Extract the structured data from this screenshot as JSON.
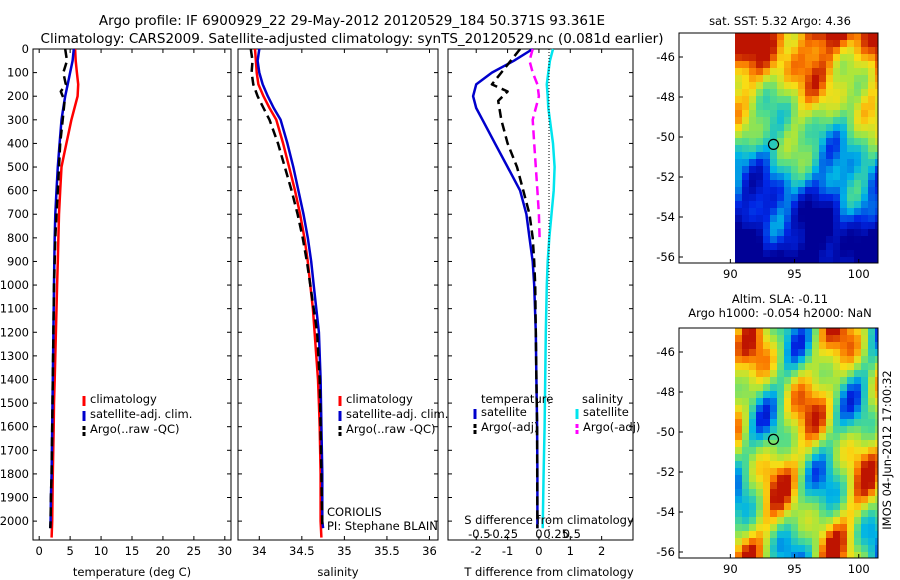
{
  "titles": {
    "line1": "Argo profile: IF 6900929_22 29-May-2012 20120529_184 50.371S 93.361E",
    "line2": "Climatology: CARS2009. Satellite-adjusted climatology: synTS_20120529.nc (0.081d earlier)"
  },
  "colors": {
    "climatology": "#ff0000",
    "satellite": "#0000cc",
    "argo": "#000000",
    "sal_satellite": "#00e5ee",
    "sal_argo": "#ff00ff"
  },
  "chart_data": [
    {
      "type": "line",
      "panel": "temperature",
      "xlabel": "temperature (deg C)",
      "ylabel": "",
      "xlim": [
        -1,
        31
      ],
      "ylim": [
        2080,
        0
      ],
      "xticks": [
        0,
        5,
        10,
        15,
        20,
        25,
        30
      ],
      "xticklabels": [
        "0",
        "5",
        "10",
        "15",
        "20",
        "25",
        "30"
      ],
      "yticks": [
        0,
        100,
        200,
        300,
        400,
        500,
        600,
        700,
        800,
        900,
        1000,
        1100,
        1200,
        1300,
        1400,
        1500,
        1600,
        1700,
        1800,
        1900,
        2000
      ],
      "yticklabels": [
        "0",
        "100",
        "200",
        "300",
        "400",
        "500",
        "600",
        "700",
        "800",
        "900",
        "1000",
        "1100",
        "1200",
        "1300",
        "1400",
        "1500",
        "1600",
        "1700",
        "1800",
        "1900",
        "2000"
      ],
      "legend": [
        "climatology",
        "satellite-adj. clim.",
        "Argo(..raw -QC)"
      ],
      "legend_position": "center-right",
      "series": [
        {
          "name": "climatology",
          "style": "solid",
          "color_key": "climatology",
          "x": [
            5.8,
            5.9,
            6.1,
            6.3,
            6.2,
            5.7,
            5.2,
            4.8,
            4.4,
            4.0,
            3.6,
            3.4,
            3.2,
            3.1,
            3.0,
            2.9,
            2.8,
            2.7,
            2.6,
            2.5,
            2.4,
            2.35,
            2.2,
            2.1,
            2.0
          ],
          "y": [
            0,
            50,
            100,
            150,
            200,
            250,
            300,
            350,
            400,
            450,
            500,
            600,
            700,
            800,
            900,
            1000,
            1100,
            1200,
            1300,
            1400,
            1500,
            1600,
            1800,
            2000,
            2070
          ]
        },
        {
          "name": "satellite-adj. clim.",
          "style": "solid",
          "color_key": "satellite",
          "x": [
            5.6,
            5.4,
            5.0,
            4.6,
            4.2,
            3.9,
            3.6,
            3.3,
            3.0,
            2.8,
            2.6,
            2.5,
            2.45,
            2.4,
            2.35,
            2.3,
            2.2,
            2.1,
            2.0,
            1.9,
            1.85,
            1.8
          ],
          "y": [
            0,
            50,
            100,
            150,
            200,
            250,
            300,
            400,
            500,
            600,
            700,
            800,
            900,
            1000,
            1100,
            1200,
            1400,
            1600,
            1800,
            1900,
            2000,
            2030
          ]
        },
        {
          "name": "Argo(..raw -QC)",
          "style": "dashed",
          "color_key": "argo",
          "x": [
            4.2,
            4.5,
            3.9,
            4.3,
            3.5,
            4.1,
            3.8,
            3.4,
            3.2,
            3.0,
            2.8,
            2.6,
            2.5,
            2.4,
            2.3,
            2.2,
            2.1,
            2.0,
            1.9,
            1.85,
            1.8
          ],
          "y": [
            0,
            50,
            100,
            150,
            180,
            220,
            300,
            400,
            500,
            600,
            700,
            800,
            900,
            1000,
            1200,
            1400,
            1600,
            1800,
            1900,
            2000,
            2030
          ]
        }
      ]
    },
    {
      "type": "line",
      "panel": "salinity",
      "xlabel": "salinity",
      "ylabel": "",
      "xlim": [
        33.75,
        36.1
      ],
      "ylim": [
        2080,
        0
      ],
      "xticks": [
        34,
        34.5,
        35,
        35.5,
        36
      ],
      "xticklabels": [
        "34",
        "34.5",
        "35",
        "35.5",
        "36"
      ],
      "legend": [
        "climatology",
        "satellite-adj. clim.",
        "Argo(..raw -QC)"
      ],
      "legend_position": "center-right",
      "annotation": [
        "CORIOLIS",
        "PI: Stephane BLAIN"
      ],
      "series": [
        {
          "name": "climatology",
          "style": "solid",
          "color_key": "climatology",
          "x": [
            33.95,
            33.96,
            33.97,
            33.99,
            34.05,
            34.12,
            34.2,
            34.28,
            34.35,
            34.42,
            34.48,
            34.53,
            34.57,
            34.6,
            34.63,
            34.65,
            34.67,
            34.69,
            34.7,
            34.71,
            34.72,
            34.72,
            34.73
          ],
          "y": [
            0,
            50,
            100,
            150,
            200,
            250,
            300,
            400,
            500,
            600,
            700,
            800,
            900,
            1000,
            1100,
            1200,
            1300,
            1400,
            1500,
            1600,
            1800,
            2000,
            2070
          ]
        },
        {
          "name": "satellite-adj. clim.",
          "style": "solid",
          "color_key": "satellite",
          "x": [
            34.0,
            33.98,
            34.0,
            34.04,
            34.1,
            34.17,
            34.25,
            34.33,
            34.4,
            34.46,
            34.52,
            34.57,
            34.61,
            34.64,
            34.67,
            34.7,
            34.72,
            34.73,
            34.74,
            34.74,
            34.75
          ],
          "y": [
            0,
            50,
            100,
            150,
            200,
            250,
            300,
            400,
            500,
            600,
            700,
            800,
            900,
            1000,
            1100,
            1200,
            1400,
            1600,
            1800,
            2000,
            2030
          ]
        },
        {
          "name": "Argo(..raw -QC)",
          "style": "dashed",
          "color_key": "argo",
          "x": [
            33.9,
            33.92,
            33.91,
            33.93,
            33.98,
            34.05,
            34.12,
            34.22,
            34.3,
            34.38,
            34.45,
            34.51,
            34.56,
            34.6,
            34.64,
            34.68,
            34.71,
            34.72,
            34.73,
            34.74
          ],
          "y": [
            0,
            50,
            100,
            150,
            200,
            250,
            300,
            400,
            500,
            600,
            700,
            800,
            900,
            1000,
            1100,
            1200,
            1400,
            1600,
            1800,
            2030
          ]
        }
      ]
    },
    {
      "type": "line",
      "panel": "difference",
      "xlabel": "T difference from climatology",
      "top_label": "S difference from climatology",
      "xlim": [
        -2.9,
        3.0
      ],
      "ylim": [
        2080,
        0
      ],
      "xticks": [
        -2,
        -1,
        0,
        1,
        2
      ],
      "xticklabels": [
        "-2",
        "-1",
        "0",
        "1",
        "2"
      ],
      "top_ticklabels": [
        "-0.5",
        "-0.25",
        "0",
        "0.25",
        "0.5"
      ],
      "legend_groups": [
        "temperature",
        "salinity"
      ],
      "legend": [
        "satellite",
        "Argo(-adj)",
        "satellite",
        "Argo(-adj)"
      ],
      "legend_position": "center",
      "series": [
        {
          "name": "satellite",
          "group": "temperature",
          "style": "solid",
          "color_key": "satellite",
          "x": [
            -0.2,
            -0.8,
            -1.5,
            -2.0,
            -2.1,
            -2.0,
            -1.8,
            -1.4,
            -1.0,
            -0.6,
            -0.4,
            -0.3,
            -0.2,
            -0.15,
            -0.1,
            -0.08,
            -0.06,
            -0.05,
            -0.05
          ],
          "y": [
            0,
            50,
            100,
            150,
            200,
            250,
            300,
            400,
            500,
            600,
            700,
            800,
            900,
            1000,
            1200,
            1400,
            1600,
            1800,
            2030
          ]
        },
        {
          "name": "Argo(-adj)",
          "group": "temperature",
          "style": "dashed",
          "color_key": "argo",
          "x": [
            -0.6,
            -0.9,
            -1.2,
            -1.5,
            -1.0,
            -1.3,
            -1.2,
            -1.0,
            -0.7,
            -0.5,
            -0.3,
            -0.2,
            -0.15,
            -0.12,
            -0.1,
            -0.08,
            -0.06,
            -0.05
          ],
          "y": [
            0,
            50,
            100,
            150,
            180,
            220,
            300,
            400,
            500,
            600,
            700,
            800,
            900,
            1000,
            1200,
            1400,
            1600,
            2030
          ]
        },
        {
          "name": "satellite",
          "group": "salinity",
          "style": "solid",
          "color_key": "sal_satellite",
          "x": [
            0.45,
            0.35,
            0.3,
            0.25,
            0.28,
            0.3,
            0.35,
            0.45,
            0.5,
            0.47,
            0.4,
            0.33,
            0.28,
            0.25,
            0.22,
            0.2,
            0.18,
            0.15,
            0.12
          ],
          "y": [
            0,
            50,
            100,
            150,
            200,
            250,
            300,
            400,
            500,
            600,
            700,
            800,
            900,
            1000,
            1200,
            1400,
            1600,
            1800,
            2030
          ]
        },
        {
          "name": "Argo(-adj)",
          "group": "salinity",
          "style": "dashed",
          "color_key": "sal_argo",
          "x": [
            -0.2,
            -0.3,
            -0.2,
            -0.05,
            0.0,
            -0.2,
            -0.15,
            -0.1,
            -0.05,
            0.0,
            0.02
          ],
          "y": [
            0,
            50,
            100,
            150,
            200,
            300,
            400,
            500,
            600,
            700,
            800
          ]
        }
      ]
    },
    {
      "type": "heatmap",
      "panel": "satellite-sst-map",
      "title": "sat. SST: 5.32 Argo: 4.36",
      "xlim": [
        86,
        101.5
      ],
      "ylim": [
        -56.3,
        -44.8
      ],
      "xticks": [
        90,
        95,
        100
      ],
      "xticklabels": [
        "90",
        "95",
        "100"
      ],
      "yticks": [
        -46,
        -48,
        -50,
        -52,
        -54,
        -56
      ],
      "yticklabels": [
        "-46",
        "-48",
        "-50",
        "-52",
        "-54",
        "-56"
      ],
      "marker": {
        "x": 93.36,
        "y": -50.37
      }
    },
    {
      "type": "heatmap",
      "panel": "altimetry-sla-map",
      "title": "Altim. SLA: -0.11",
      "subtitle": "Argo h1000: -0.054 h2000: NaN",
      "xlim": [
        86,
        101.5
      ],
      "ylim": [
        -56.3,
        -44.8
      ],
      "xticks": [
        90,
        95,
        100
      ],
      "xticklabels": [
        "90",
        "95",
        "100"
      ],
      "yticks": [
        -46,
        -48,
        -50,
        -52,
        -54,
        -56
      ],
      "yticklabels": [
        "-46",
        "-48",
        "-50",
        "-52",
        "-54",
        "-56"
      ],
      "marker": {
        "x": 93.36,
        "y": -50.37
      }
    }
  ],
  "stamp": "IMOS 04-Jun-2012 17:00:32"
}
